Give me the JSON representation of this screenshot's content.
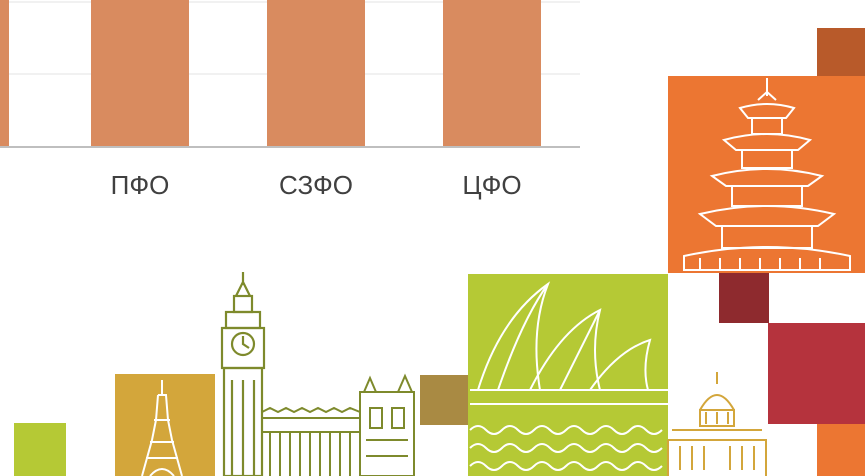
{
  "chart_data": {
    "type": "bar",
    "categories": [
      "",
      "ПФО",
      "СЗФО",
      "ЦФО"
    ],
    "values": [
      null,
      null,
      null,
      null
    ],
    "title": "",
    "xlabel": "",
    "ylabel": "",
    "grid": true,
    "legend": "none"
  },
  "colors": {
    "bar": "#d98b5f",
    "grid": "#e3e3e3",
    "axis": "#bfbfbf",
    "label": "#404040",
    "lime": "#b5c935",
    "olive": "#7e8a2c",
    "mustard": "#d3a63b",
    "orange": "#ec7632",
    "rust": "#b85a2a",
    "maroon": "#8e2a2e",
    "crimson": "#b5333d",
    "brown": "#a98a43"
  },
  "illustration": {
    "landmarks": [
      "eiffel-tower-icon",
      "big-ben-icon",
      "westminster-icon",
      "sydney-opera-icon",
      "capitol-icon",
      "pagoda-icon"
    ]
  }
}
